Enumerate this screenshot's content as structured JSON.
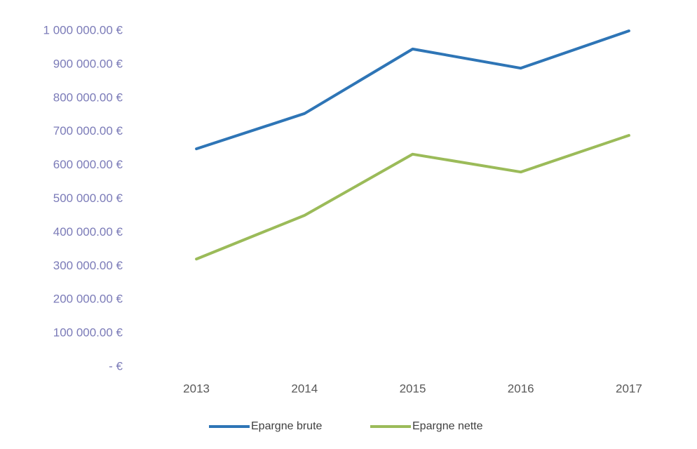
{
  "chart_data": {
    "type": "line",
    "categories": [
      "2013",
      "2014",
      "2015",
      "2016",
      "2017"
    ],
    "series": [
      {
        "name": "Epargne brute",
        "color": "#2e75b6",
        "values": [
          649000,
          754000,
          946000,
          889000,
          1000000
        ]
      },
      {
        "name": "Epargne nette",
        "color": "#9bbb59",
        "values": [
          321000,
          451000,
          633000,
          580000,
          689000
        ]
      }
    ],
    "ylim": [
      0,
      1000000
    ],
    "yticks": [
      {
        "value": 0,
        "label": "-   €"
      },
      {
        "value": 100000,
        "label": "100 000.00 €"
      },
      {
        "value": 200000,
        "label": "200 000.00 €"
      },
      {
        "value": 300000,
        "label": "300 000.00 €"
      },
      {
        "value": 400000,
        "label": "400 000.00 €"
      },
      {
        "value": 500000,
        "label": "500 000.00 €"
      },
      {
        "value": 600000,
        "label": "600 000.00 €"
      },
      {
        "value": 700000,
        "label": "700 000.00 €"
      },
      {
        "value": 800000,
        "label": "800 000.00 €"
      },
      {
        "value": 900000,
        "label": "900 000.00 €"
      },
      {
        "value": 1000000,
        "label": "1 000 000.00 €"
      }
    ],
    "grid": false,
    "legend": "bottom"
  }
}
